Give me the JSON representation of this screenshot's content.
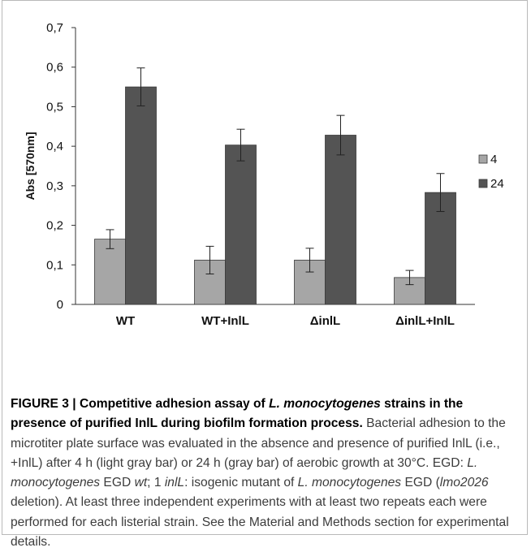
{
  "chart_data": {
    "type": "bar",
    "ylabel": "Abs [570nm]",
    "xlabel": "",
    "ylim": [
      0,
      0.7
    ],
    "yticks": [
      "0",
      "0,1",
      "0,2",
      "0,3",
      "0,4",
      "0,5",
      "0,6",
      "0,7"
    ],
    "categories": [
      "WT",
      "WT+InlL",
      "ΔinlL",
      "ΔinlL+InlL"
    ],
    "series": [
      {
        "name": "4",
        "color": "#a6a6a6",
        "values": [
          0.165,
          0.112,
          0.112,
          0.068
        ],
        "errors": [
          0.024,
          0.035,
          0.03,
          0.018
        ]
      },
      {
        "name": "24",
        "color": "#545454",
        "values": [
          0.55,
          0.403,
          0.428,
          0.283
        ],
        "errors": [
          0.048,
          0.04,
          0.05,
          0.048
        ]
      }
    ],
    "legend_position": "right"
  },
  "caption": {
    "label": "FIGURE 3 | ",
    "title_a": "Competitive adhesion assay of ",
    "title_species": "L. monocytogenes",
    "title_b": " strains in the presence of purified InlL during biofilm formation process.",
    "body_1": " Bacterial adhesion to the microtiter plate surface was evaluated in the absence and presence of purified InlL (i.e., +InlL) after 4 h (light gray bar) or 24 h (gray bar) of aerobic growth at 30°C. EGD: ",
    "species_1": "L. monocytogenes",
    "body_2": " EGD ",
    "wt": "wt",
    "body_3": "; 1 ",
    "inll": "inlL",
    "body_4": ": isogenic mutant of ",
    "species_2": "L. monocytogenes",
    "body_5": " EGD (",
    "lmo": "lmo2026",
    "body_6": " deletion). At least three independent experiments with at least two repeats each were performed for each listerial strain. See the Material and Methods section for experimental details."
  }
}
